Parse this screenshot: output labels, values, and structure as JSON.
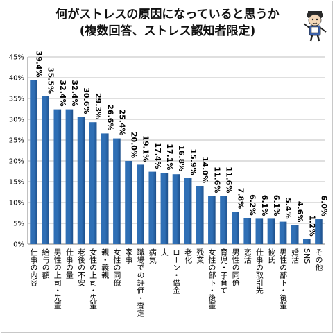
{
  "title": "何がストレスの原因になっていると思うか",
  "subtitle": "(複数回答、ストレス認知者限定)",
  "chart_data": {
    "type": "bar",
    "title": "何がストレスの原因になっていると思うか",
    "subtitle": "(複数回答、ストレス認知者限定)",
    "categories": [
      "仕事の内容",
      "給与の額",
      "男性の上司・先輩",
      "仕事の量",
      "老後の不安",
      "女性の上司・先輩",
      "親・義親",
      "女性の同僚",
      "家事",
      "職場での評価・査定",
      "病気",
      "夫",
      "ローン・借金",
      "老化",
      "残業",
      "女性の部下・後輩",
      "育児・子育て",
      "男性の同僚",
      "恋活",
      "仕事の取引先",
      "彼氏",
      "男性の部下・後輩",
      "婚活",
      "SNS",
      "その他"
    ],
    "values": [
      39.4,
      35.5,
      32.4,
      32.4,
      30.6,
      29.3,
      26.6,
      25.4,
      20.0,
      19.1,
      17.4,
      17.1,
      16.8,
      15.9,
      14.0,
      11.6,
      11.6,
      7.8,
      6.2,
      6.1,
      6.1,
      5.4,
      4.6,
      1.2,
      6.0
    ],
    "value_labels": [
      "39.4%",
      "35.5%",
      "32.4%",
      "32.4%",
      "30.6%",
      "29.3%",
      "26.6%",
      "25.4%",
      "20.0%",
      "19.1%",
      "17.4%",
      "17.1%",
      "16.8%",
      "15.9%",
      "14.0%",
      "11.6%",
      "11.6%",
      "7.8%",
      "6.2%",
      "6.1%",
      "6.1%",
      "5.4%",
      "4.6%",
      "1.2%",
      "6.0%"
    ],
    "ylim": [
      0,
      45
    ],
    "yticks": [
      "0%",
      "5%",
      "10%",
      "15%",
      "20%",
      "25%",
      "30%",
      "35%",
      "40%",
      "45%"
    ],
    "grid": true,
    "colors": {
      "bar": "#2f6fb5",
      "bar_dark": "#1d4f8a",
      "grid": "#bfbfbf",
      "axis": "#808080",
      "text": "#000000"
    }
  }
}
